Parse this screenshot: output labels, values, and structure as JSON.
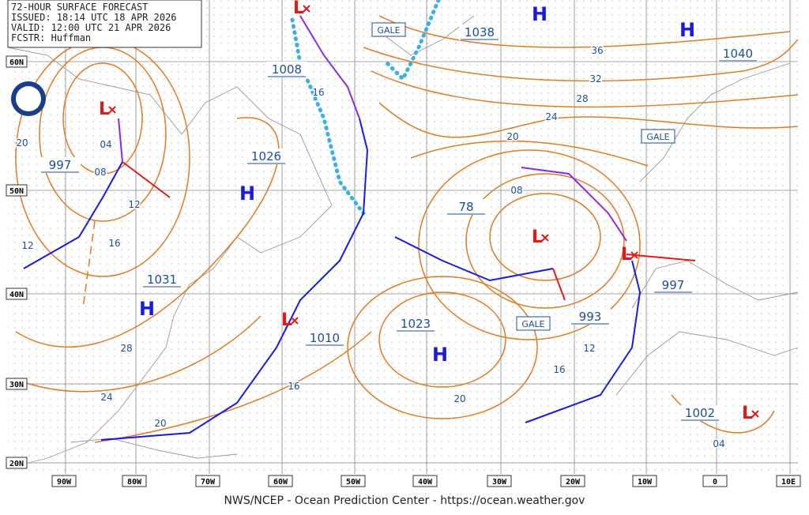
{
  "header": {
    "title": "72-HOUR SURFACE FORECAST",
    "issued": "ISSUED: 18:14 UTC 18 APR 2026",
    "valid": "VALID: 12:00 UTC 21 APR 2026",
    "forecaster": "FCSTR: Huffman"
  },
  "lat_labels": [
    "60N",
    "50N",
    "40N",
    "30N",
    "20N"
  ],
  "lon_labels": [
    "90W",
    "80W",
    "70W",
    "60W",
    "50W",
    "40W",
    "30W",
    "20W",
    "10W",
    "0",
    "10E"
  ],
  "pressure_labels": [
    "1038",
    "1040",
    "1008",
    "997",
    "1026",
    "1031",
    "78",
    "1010",
    "1023",
    "993",
    "997",
    "1002"
  ],
  "high_symbols": [
    "H",
    "H",
    "H",
    "H",
    "H"
  ],
  "low_symbols": [
    "L",
    "L",
    "L",
    "L",
    "L",
    "L"
  ],
  "gale_labels": [
    "GALE",
    "GALE",
    "GALE"
  ],
  "isobar_labels": [
    "36",
    "32",
    "28",
    "24",
    "20",
    "16",
    "04",
    "08",
    "12",
    "16",
    "12",
    "20",
    "08",
    "28",
    "24",
    "20",
    "16",
    "20",
    "16",
    "12",
    "04"
  ],
  "footer": "NWS/NCEP - Ocean Prediction Center - https://ocean.weather.gov"
}
